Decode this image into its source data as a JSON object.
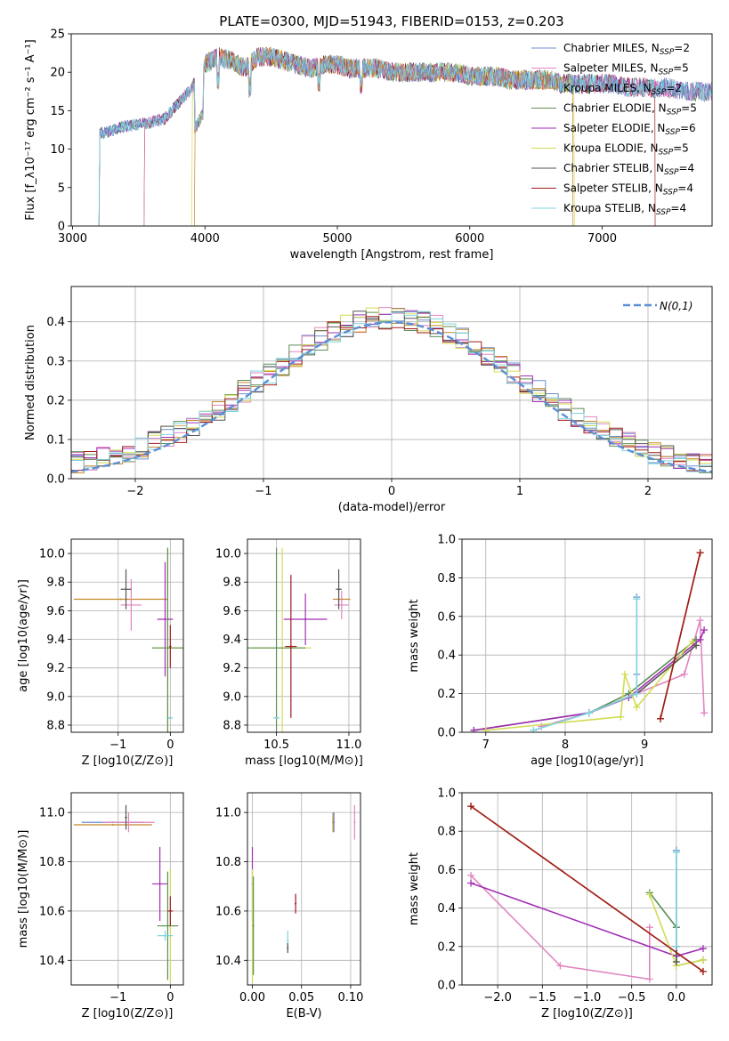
{
  "figure_title": "PLATE=0300, MJD=51943, FIBERID=0153, z=0.203",
  "series_colors": [
    "#6b8fcf",
    "#e085c0",
    "#c8882b",
    "#5c8f55",
    "#a22fb5",
    "#d2dc55",
    "#555555",
    "#a01c1c",
    "#80d4de"
  ],
  "series_names": [
    "Chabrier MILES, N_SSP=2",
    "Salpeter MILES, N_SSP=5",
    "Kroupa MILES, N_SSP=2",
    "Chabrier ELODIE, N_SSP=5",
    "Salpeter ELODIE, N_SSP=6",
    "Kroupa ELODIE, N_SSP=5",
    "Chabrier STELIB, N_SSP=4",
    "Salpeter STELIB, N_SSP=4",
    "Kroupa STELIB, N_SSP=4"
  ],
  "chart_data": [
    {
      "id": "spectrum",
      "type": "line",
      "xlabel": "wavelength [Angstrom, rest frame]",
      "ylabel": "Flux [f_λ10⁻¹⁷ erg cm⁻² s⁻¹ A⁻¹]",
      "xlim": [
        2990,
        7830
      ],
      "ylim": [
        0,
        25
      ],
      "xticks": [
        3000,
        4000,
        5000,
        6000,
        7000
      ],
      "yticks": [
        0,
        5,
        10,
        15,
        20,
        25
      ],
      "grid": false,
      "legend_position": "right",
      "spectrum_x": [
        3200,
        3300,
        3400,
        3500,
        3600,
        3700,
        3800,
        3900,
        4000,
        4100,
        4200,
        4300,
        4400,
        4500,
        4600,
        4700,
        4800,
        4900,
        5000,
        5100,
        5200,
        5300,
        5400,
        5500,
        5600,
        5700,
        5800,
        5900,
        6000,
        6100,
        6200,
        6300,
        6400,
        6500,
        6600,
        6700,
        6800,
        6900,
        7000,
        7100,
        7200,
        7300,
        7400,
        7500,
        7600,
        7700,
        7800
      ],
      "spectrum_y": [
        12,
        12.5,
        13,
        13.2,
        13.5,
        14,
        16,
        18,
        21,
        22,
        21.5,
        20.5,
        22,
        22,
        21.5,
        21,
        20.5,
        21,
        21,
        20.5,
        20.5,
        20.5,
        20,
        20,
        20,
        20,
        20,
        20,
        19.5,
        19.5,
        19.5,
        19,
        19,
        19,
        19,
        18.5,
        18.5,
        18.5,
        18.5,
        18.5,
        18,
        18,
        18,
        18,
        17.5,
        17.5,
        17.5
      ],
      "series_starts": [
        3200,
        3540,
        3920,
        3200,
        3200,
        3900,
        3200,
        3540,
        3200
      ],
      "series_ends": [
        7830,
        7830,
        6780,
        7830,
        7830,
        6790,
        7830,
        7400,
        7830
      ]
    },
    {
      "id": "residuals",
      "type": "histogram",
      "xlabel": "(data-model)/error",
      "ylabel": "Normed distribution",
      "xlim": [
        -2.5,
        2.5
      ],
      "ylim": [
        0,
        0.49
      ],
      "xticks": [
        -2,
        -1,
        0,
        1,
        2
      ],
      "yticks": [
        0,
        0.1,
        0.2,
        0.3,
        0.4
      ],
      "grid": true,
      "legend_position": "top-right",
      "reference_label": "N(0,1)",
      "bin_width": 0.1
    },
    {
      "id": "age_vs_Z",
      "type": "scatter",
      "xlabel": "Z [log10(Z/Z⊙)]",
      "ylabel": "age [log10(age/yr)]",
      "xlim": [
        -1.9,
        0.25
      ],
      "ylim": [
        8.75,
        10.1
      ],
      "xticks": [
        -1,
        0
      ],
      "yticks": [
        8.8,
        9.0,
        9.2,
        9.4,
        9.6,
        9.8,
        10.0
      ],
      "grid": true,
      "points": [
        {
          "s": 2,
          "x": -0.95,
          "y": 9.68,
          "xerr": 0.9,
          "yerr": 0.0
        },
        {
          "s": 1,
          "x": -0.75,
          "y": 9.64,
          "xerr": 0.2,
          "yerr": 0.18
        },
        {
          "s": 6,
          "x": -0.85,
          "y": 9.75,
          "xerr": 0.1,
          "yerr": 0.14
        },
        {
          "s": 4,
          "x": -0.1,
          "y": 9.54,
          "xerr": 0.15,
          "yerr": 0.4
        },
        {
          "s": 5,
          "x": -0.05,
          "y": 9.34,
          "xerr": 0.3,
          "yerr": 0.7
        },
        {
          "s": 3,
          "x": -0.05,
          "y": 9.34,
          "xerr": 0.3,
          "yerr": 0.7
        },
        {
          "s": 7,
          "x": 0.0,
          "y": 9.35,
          "xerr": 0.02,
          "yerr": 0.15
        },
        {
          "s": 0,
          "x": 0.0,
          "y": 8.85,
          "xerr": 0.04,
          "yerr": 0.0
        },
        {
          "s": 8,
          "x": 0.0,
          "y": 8.85,
          "xerr": 0.04,
          "yerr": 0.0
        }
      ]
    },
    {
      "id": "age_vs_mass",
      "type": "scatter",
      "xlabel": "mass [log10(M/M⊙)]",
      "ylabel": "",
      "xlim": [
        10.3,
        11.08
      ],
      "ylim": [
        8.75,
        10.1
      ],
      "xticks": [
        10.5,
        11.0
      ],
      "yticks": [
        8.8,
        9.0,
        9.2,
        9.4,
        9.6,
        9.8,
        10.0
      ],
      "grid": true,
      "points": [
        {
          "s": 2,
          "x": 10.95,
          "y": 9.68,
          "xerr": 0.06,
          "yerr": 0.0
        },
        {
          "s": 1,
          "x": 10.95,
          "y": 9.64,
          "xerr": 0.05,
          "yerr": 0.1
        },
        {
          "s": 6,
          "x": 10.93,
          "y": 9.75,
          "xerr": 0.02,
          "yerr": 0.14
        },
        {
          "s": 4,
          "x": 10.7,
          "y": 9.54,
          "xerr": 0.15,
          "yerr": 0.18
        },
        {
          "s": 5,
          "x": 10.54,
          "y": 9.34,
          "xerr": 0.2,
          "yerr": 0.7
        },
        {
          "s": 3,
          "x": 10.5,
          "y": 9.34,
          "xerr": 0.2,
          "yerr": 0.7
        },
        {
          "s": 7,
          "x": 10.6,
          "y": 9.35,
          "xerr": 0.04,
          "yerr": 0.5
        },
        {
          "s": 0,
          "x": 10.5,
          "y": 8.85,
          "xerr": 0.02,
          "yerr": 0.0
        },
        {
          "s": 8,
          "x": 10.5,
          "y": 8.85,
          "xerr": 0.02,
          "yerr": 0.0
        }
      ]
    },
    {
      "id": "massweight_vs_age",
      "type": "line",
      "xlabel": "age [log10(age/yr)]",
      "ylabel": "mass weight",
      "xlim": [
        6.7,
        9.85
      ],
      "ylim": [
        0,
        1.0
      ],
      "xticks": [
        7,
        8,
        9
      ],
      "yticks": [
        0,
        0.2,
        0.4,
        0.6,
        0.8,
        1.0
      ],
      "grid": true,
      "series": [
        {
          "s": 0,
          "x": [
            8.9,
            8.9
          ],
          "y": [
            0.7,
            0.3
          ]
        },
        {
          "s": 1,
          "x": [
            7.7,
            8.3,
            9.5,
            9.7,
            9.75
          ],
          "y": [
            0.03,
            0.1,
            0.3,
            0.58,
            0.1
          ]
        },
        {
          "s": 2,
          "x": [
            9.2,
            9.7
          ],
          "y": [
            0.07,
            0.93
          ]
        },
        {
          "s": 3,
          "x": [
            6.85,
            8.3,
            8.8,
            9.65
          ],
          "y": [
            0.01,
            0.1,
            0.2,
            0.48
          ]
        },
        {
          "s": 4,
          "x": [
            6.85,
            8.3,
            8.8,
            9.7,
            9.75
          ],
          "y": [
            0.01,
            0.1,
            0.18,
            0.48,
            0.53
          ]
        },
        {
          "s": 5,
          "x": [
            7.0,
            8.7,
            8.75,
            8.9,
            9.6
          ],
          "y": [
            0.01,
            0.08,
            0.3,
            0.13,
            0.47
          ]
        },
        {
          "s": 6,
          "x": [
            8.3,
            8.9,
            9.65
          ],
          "y": [
            0.1,
            0.2,
            0.45
          ]
        },
        {
          "s": 7,
          "x": [
            9.2,
            9.7
          ],
          "y": [
            0.07,
            0.93
          ]
        },
        {
          "s": 8,
          "x": [
            7.6,
            8.3,
            8.9,
            8.9
          ],
          "y": [
            0.01,
            0.1,
            0.2,
            0.69
          ]
        }
      ]
    },
    {
      "id": "mass_vs_Z",
      "type": "scatter",
      "xlabel": "Z [log10(Z/Z⊙)]",
      "ylabel": "mass [log10(M/M⊙)]",
      "xlim": [
        -1.9,
        0.25
      ],
      "ylim": [
        10.3,
        11.08
      ],
      "xticks": [
        -1,
        0
      ],
      "yticks": [
        10.4,
        10.6,
        10.8,
        11.0
      ],
      "grid": true,
      "points": [
        {
          "s": 2,
          "x": -1.1,
          "y": 10.95,
          "xerr": 0.75,
          "yerr": 0.0
        },
        {
          "s": 0,
          "x": -1.1,
          "y": 10.96,
          "xerr": 0.6,
          "yerr": 0.0
        },
        {
          "s": 1,
          "x": -0.8,
          "y": 10.96,
          "xerr": 0.5,
          "yerr": 0.04
        },
        {
          "s": 6,
          "x": -0.85,
          "y": 10.98,
          "xerr": 0.02,
          "yerr": 0.05
        },
        {
          "s": 4,
          "x": -0.2,
          "y": 10.71,
          "xerr": 0.15,
          "yerr": 0.15
        },
        {
          "s": 5,
          "x": 0.0,
          "y": 10.54,
          "xerr": 0.15,
          "yerr": 0.23
        },
        {
          "s": 3,
          "x": -0.05,
          "y": 10.54,
          "xerr": 0.2,
          "yerr": 0.22
        },
        {
          "s": 7,
          "x": 0.0,
          "y": 10.6,
          "xerr": 0.05,
          "yerr": 0.06
        },
        {
          "s": 8,
          "x": -0.1,
          "y": 10.5,
          "xerr": 0.15,
          "yerr": 0.02
        }
      ]
    },
    {
      "id": "mass_vs_EBV",
      "type": "scatter",
      "xlabel": "E(B-V)",
      "ylabel": "",
      "xlim": [
        -0.005,
        0.11
      ],
      "ylim": [
        10.3,
        11.08
      ],
      "xticks": [
        0.0,
        0.05,
        0.1
      ],
      "yticks": [
        10.4,
        10.6,
        10.8,
        11.0
      ],
      "grid": true,
      "points": [
        {
          "s": 2,
          "x": 0.082,
          "y": 10.96,
          "xerr": 0.0,
          "yerr": 0.04
        },
        {
          "s": 0,
          "x": 0.083,
          "y": 10.96,
          "xerr": 0.0,
          "yerr": 0.04
        },
        {
          "s": 1,
          "x": 0.104,
          "y": 10.96,
          "xerr": 0.0,
          "yerr": 0.07
        },
        {
          "s": 4,
          "x": 0.0,
          "y": 10.71,
          "xerr": 0.0,
          "yerr": 0.15
        },
        {
          "s": 5,
          "x": 0.0,
          "y": 10.54,
          "xerr": 0.0,
          "yerr": 0.23
        },
        {
          "s": 3,
          "x": 0.001,
          "y": 10.54,
          "xerr": 0.0,
          "yerr": 0.2
        },
        {
          "s": 7,
          "x": 0.044,
          "y": 10.63,
          "xerr": 0.0,
          "yerr": 0.04
        },
        {
          "s": 8,
          "x": 0.036,
          "y": 10.48,
          "xerr": 0.0,
          "yerr": 0.04
        },
        {
          "s": 6,
          "x": 0.036,
          "y": 10.45,
          "xerr": 0.0,
          "yerr": 0.02
        }
      ]
    },
    {
      "id": "massweight_vs_Z",
      "type": "line",
      "xlabel": "Z [log10(Z/Z⊙)]",
      "ylabel": "mass weight",
      "xlim": [
        -2.4,
        0.4
      ],
      "ylim": [
        0,
        1.0
      ],
      "xticks": [
        -2.0,
        -1.5,
        -1.0,
        -0.5,
        0.0
      ],
      "yticks": [
        0,
        0.2,
        0.4,
        0.6,
        0.8,
        1.0
      ],
      "grid": true,
      "series": [
        {
          "s": 0,
          "x": [
            0.0,
            0.0
          ],
          "y": [
            0.7,
            0.3
          ]
        },
        {
          "s": 1,
          "x": [
            -2.3,
            -1.3,
            -0.3,
            -0.3
          ],
          "y": [
            0.57,
            0.1,
            0.03,
            0.3
          ]
        },
        {
          "s": 2,
          "x": [
            -2.3,
            0.3
          ],
          "y": [
            0.93,
            0.07
          ]
        },
        {
          "s": 3,
          "x": [
            -0.3,
            0.0,
            0.0,
            0.3
          ],
          "y": [
            0.48,
            0.3,
            0.1,
            0.13
          ]
        },
        {
          "s": 4,
          "x": [
            -2.3,
            0.0,
            0.3
          ],
          "y": [
            0.53,
            0.15,
            0.19
          ]
        },
        {
          "s": 5,
          "x": [
            -0.3,
            0.0,
            0.3
          ],
          "y": [
            0.47,
            0.1,
            0.13
          ]
        },
        {
          "s": 6,
          "x": [
            0.0,
            0.0
          ],
          "y": [
            0.2,
            0.12
          ]
        },
        {
          "s": 7,
          "x": [
            -2.3,
            0.3
          ],
          "y": [
            0.93,
            0.07
          ]
        },
        {
          "s": 8,
          "x": [
            0.0,
            0.0
          ],
          "y": [
            0.69,
            0.2
          ]
        }
      ]
    }
  ]
}
